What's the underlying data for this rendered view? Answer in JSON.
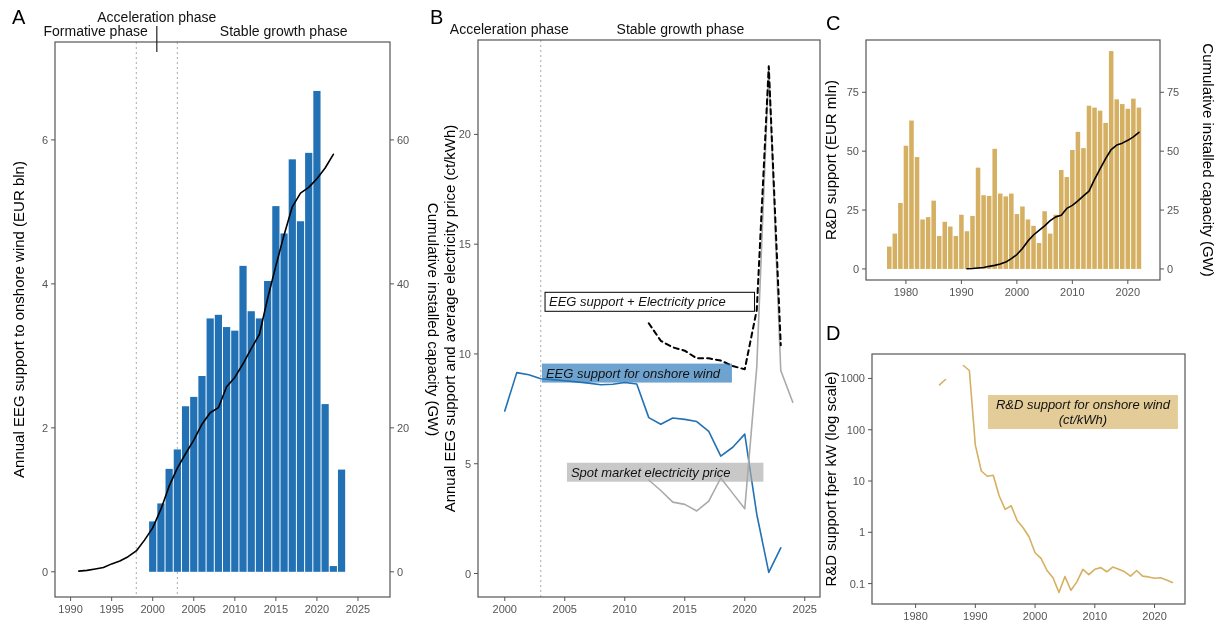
{
  "chart_data": [
    {
      "type": "bar",
      "title": "A",
      "annotations": [
        "Formative phase",
        "Acceleration phase",
        "Stable growth phase"
      ],
      "ylabel": "Annual EEG support to onshore wind (EUR bln)",
      "y2label": "Cumulative installed capacity (GW)",
      "xlim": [
        1988.1,
        2028.9
      ],
      "xticks": [
        1990,
        1995,
        2000,
        2005,
        2010,
        2015,
        2020,
        2025
      ],
      "ylim": [
        -0.35,
        7.36
      ],
      "yticks": [
        0,
        2,
        4,
        6
      ],
      "y2lim": [
        -3.5,
        73.6
      ],
      "y2ticks": [
        0,
        20,
        40,
        60
      ],
      "ref_lines": [
        {
          "axis": "x",
          "value": 1998,
          "color": "#aaaaaa",
          "line_style": "dotted"
        },
        {
          "axis": "x",
          "value": 2003,
          "color": "#aaaaaa",
          "line_style": "dotted"
        }
      ],
      "series": [
        {
          "color": "#2271b5",
          "x": [
            2000,
            2001,
            2002,
            2003,
            2004,
            2005,
            2006,
            2007,
            2008,
            2009,
            2010,
            2011,
            2012,
            2013,
            2014,
            2015,
            2016,
            2017,
            2018,
            2019,
            2020,
            2021,
            2022,
            2023
          ],
          "values": [
            0.7,
            0.95,
            1.43,
            1.7,
            2.3,
            2.43,
            2.72,
            3.52,
            3.57,
            3.4,
            3.35,
            4.25,
            3.62,
            3.52,
            4.04,
            5.08,
            4.7,
            5.73,
            4.87,
            5.82,
            6.68,
            2.33,
            0.08,
            1.42
          ]
        },
        {
          "type": "line",
          "axis": "y2",
          "color": "#000000",
          "x": [
            1991,
            1992,
            1993,
            1994,
            1995,
            1996,
            1997,
            1998,
            1999,
            2000,
            2001,
            2002,
            2003,
            2004,
            2005,
            2006,
            2007,
            2008,
            2009,
            2010,
            2011,
            2012,
            2013,
            2014,
            2015,
            2016,
            2017,
            2018,
            2019,
            2020,
            2021,
            2022
          ],
          "values": [
            0.1,
            0.2,
            0.4,
            0.6,
            1.1,
            1.5,
            2.1,
            2.9,
            4.4,
            6.1,
            8.7,
            11.9,
            14.4,
            16.4,
            18.3,
            20.5,
            22.1,
            22.8,
            25.7,
            27.0,
            28.9,
            31.0,
            33.0,
            38.0,
            42.5,
            46.8,
            50.7,
            52.6,
            53.4,
            54.6,
            56.1,
            58.0
          ]
        }
      ]
    },
    {
      "type": "line",
      "title": "B",
      "annotations": [
        "Acceleration phase",
        "Stable growth phase"
      ],
      "ylabel": "Annual EEG support and average electricity price (ct/kWh)",
      "xlim": [
        1997.77,
        2026.27
      ],
      "xticks": [
        2000,
        2005,
        2010,
        2015,
        2020,
        2025
      ],
      "ylim": [
        -1.07,
        24.3
      ],
      "yticks": [
        0,
        5,
        10,
        15,
        20
      ],
      "ref_lines": [
        {
          "axis": "x",
          "value": 2003,
          "color": "#aaaaaa",
          "line_style": "dotted"
        }
      ],
      "series": [
        {
          "name": "EEG support for onshore wind",
          "color": "#2271b5",
          "x": [
            2000,
            2001,
            2002,
            2003,
            2004,
            2005,
            2006,
            2007,
            2008,
            2009,
            2010,
            2011,
            2012,
            2013,
            2014,
            2015,
            2016,
            2017,
            2018,
            2019,
            2020,
            2021,
            2022,
            2023
          ],
          "values": [
            7.4,
            9.15,
            9.05,
            8.87,
            8.83,
            8.78,
            8.73,
            8.67,
            8.6,
            8.62,
            8.7,
            8.63,
            7.1,
            6.8,
            7.08,
            7.02,
            6.92,
            6.47,
            5.35,
            5.75,
            6.35,
            2.7,
            0.05,
            1.17
          ]
        },
        {
          "name": "Spot market electricity price",
          "color": "#aaaaaa",
          "x": [
            2012,
            2013,
            2014,
            2015,
            2016,
            2017,
            2018,
            2019,
            2020,
            2021,
            2022,
            2023,
            2024
          ],
          "values": [
            4.26,
            3.78,
            3.25,
            3.15,
            2.85,
            3.3,
            4.35,
            3.65,
            2.95,
            9.4,
            23.0,
            9.25,
            7.8
          ]
        },
        {
          "name": "EEG support + Electricity price",
          "color": "#000000",
          "line_style": "dashed",
          "x": [
            2012,
            2013,
            2014,
            2015,
            2016,
            2017,
            2018,
            2019,
            2020,
            2021,
            2022,
            2023
          ],
          "values": [
            11.4,
            10.6,
            10.3,
            10.15,
            9.8,
            9.8,
            9.7,
            9.45,
            9.3,
            12.0,
            23.1,
            10.4
          ]
        }
      ]
    },
    {
      "type": "bar",
      "title": "C",
      "ylabel": "R&D support (EUR mln)",
      "y2label": "Cumulative installed capacity (GW)",
      "xlim": [
        1972.8,
        2025.8
      ],
      "xticks": [
        1980,
        1990,
        2000,
        2010,
        2020
      ],
      "ylim": [
        -4.7,
        97.2
      ],
      "yticks": [
        0,
        25,
        50,
        75
      ],
      "y2lim": [
        -4.7,
        97.2
      ],
      "y2ticks": [
        0,
        25,
        50,
        75
      ],
      "series": [
        {
          "color": "#d6b062",
          "x": [
            1977,
            1978,
            1979,
            1980,
            1981,
            1982,
            1983,
            1984,
            1985,
            1986,
            1987,
            1988,
            1989,
            1990,
            1991,
            1992,
            1993,
            1994,
            1995,
            1996,
            1997,
            1998,
            1999,
            2000,
            2001,
            2002,
            2003,
            2004,
            2005,
            2006,
            2007,
            2008,
            2009,
            2010,
            2011,
            2012,
            2013,
            2014,
            2015,
            2016,
            2017,
            2018,
            2019,
            2020,
            2021,
            2022
          ],
          "values": [
            9.5,
            15,
            28,
            52.3,
            63,
            47.5,
            21,
            22,
            29,
            14,
            20,
            18,
            14,
            23,
            16,
            22.5,
            43,
            31.3,
            31,
            51,
            32,
            30.8,
            32,
            23.3,
            26.5,
            21,
            18.3,
            11,
            24.5,
            15,
            23,
            42,
            39,
            50.5,
            58.2,
            51.3,
            69.3,
            68.5,
            67.2,
            62,
            92.5,
            72,
            70,
            68,
            72.3,
            68.5
          ]
        },
        {
          "type": "line",
          "axis": "y2",
          "color": "#000000",
          "x": [
            1991,
            1992,
            1993,
            1994,
            1995,
            1996,
            1997,
            1998,
            1999,
            2000,
            2001,
            2002,
            2003,
            2004,
            2005,
            2006,
            2007,
            2008,
            2009,
            2010,
            2011,
            2012,
            2013,
            2014,
            2015,
            2016,
            2017,
            2018,
            2019,
            2020,
            2021,
            2022
          ],
          "values": [
            0.1,
            0.2,
            0.4,
            0.6,
            1.1,
            1.5,
            2.1,
            2.9,
            4.4,
            6.1,
            8.7,
            11.9,
            14.4,
            16.4,
            18.3,
            20.5,
            22.1,
            22.8,
            25.7,
            27.0,
            28.9,
            31.0,
            33.0,
            38.0,
            42.5,
            46.8,
            50.7,
            52.6,
            53.4,
            54.6,
            56.1,
            58.0
          ]
        }
      ]
    },
    {
      "type": "line",
      "title": "D",
      "ylabel": "R&D support fper kW (log scale)",
      "log": "y",
      "xlim": [
        1972.7,
        2025.1
      ],
      "xticks": [
        1980,
        1990,
        2000,
        2010,
        2020
      ],
      "ylim": [
        0.04,
        3000
      ],
      "yticks": [
        0.1,
        1,
        10,
        100,
        1000
      ],
      "series": [
        {
          "name": "R&D support for onshore wind (ct/kWh)",
          "color": "#d6b062",
          "x": [
            1984,
            1985,
            1986,
            1987,
            1988,
            1989,
            1990,
            1991,
            1992,
            1993,
            1994,
            1995,
            1996,
            1997,
            1998,
            1999,
            2000,
            2001,
            2002,
            2003,
            2004,
            2005,
            2006,
            2007,
            2008,
            2009,
            2010,
            2011,
            2012,
            2013,
            2014,
            2015,
            2016,
            2017,
            2018,
            2019,
            2020,
            2021,
            2022,
            2023
          ],
          "values": [
            753,
            955,
            null,
            null,
            1790,
            1430,
            50,
            15.7,
            12.4,
            13,
            5.1,
            2.8,
            3.3,
            1.7,
            1.23,
            0.81,
            0.4,
            0.31,
            0.18,
            0.13,
            0.067,
            0.137,
            0.074,
            0.108,
            0.19,
            0.15,
            0.19,
            0.205,
            0.17,
            0.21,
            0.19,
            0.17,
            0.14,
            0.18,
            0.14,
            0.135,
            0.127,
            0.13,
            0.118,
            0.105
          ]
        }
      ]
    }
  ]
}
